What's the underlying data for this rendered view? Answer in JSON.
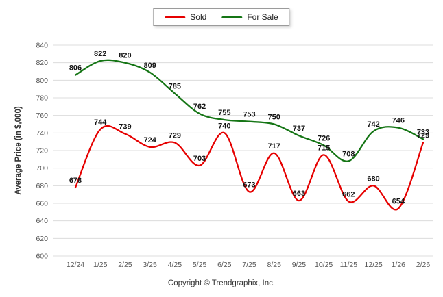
{
  "chart_data": {
    "type": "line",
    "categories": [
      "12/24",
      "1/25",
      "2/25",
      "3/25",
      "4/25",
      "5/25",
      "6/25",
      "7/25",
      "8/25",
      "9/25",
      "10/25",
      "11/25",
      "12/25",
      "1/26",
      "2/26"
    ],
    "series": [
      {
        "name": "Sold",
        "color": "#e60000",
        "values": [
          678,
          744,
          739,
          724,
          729,
          703,
          740,
          673,
          717,
          663,
          715,
          662,
          680,
          654,
          729
        ]
      },
      {
        "name": "For Sale",
        "color": "#157515",
        "values": [
          806,
          822,
          820,
          809,
          785,
          762,
          755,
          753,
          750,
          737,
          726,
          708,
          742,
          746,
          733
        ]
      }
    ],
    "title": "",
    "xlabel": "",
    "ylabel": "Average Price (in $,000)",
    "ylim": [
      600,
      840
    ],
    "ytick_step": 20,
    "grid": "horizontal",
    "legend_position": "top-center",
    "smooth": true
  },
  "legend": {
    "sold_label": "Sold",
    "for_sale_label": "For Sale"
  },
  "colors": {
    "sold": "#e60000",
    "for_sale": "#157515",
    "gridline": "#dcdcdc",
    "tick_text": "#555555",
    "value_label": "#141414",
    "axis_title": "#333333"
  },
  "footer": {
    "copyright": "Copyright © Trendgraphix, Inc."
  }
}
